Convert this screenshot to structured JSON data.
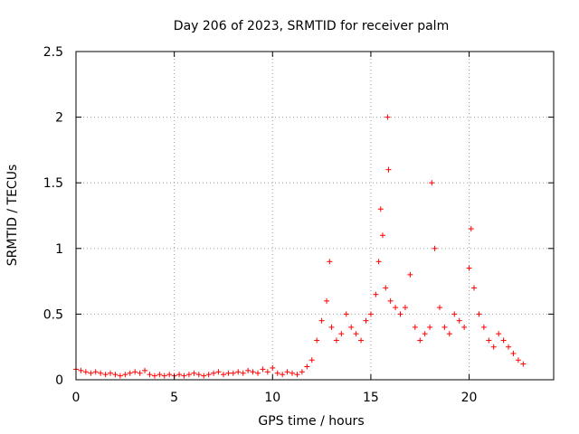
{
  "chart_data": {
    "type": "scatter",
    "title": "Day 206 of 2023, SRMTID for receiver palm",
    "xlabel": "GPS time / hours",
    "ylabel": "SRMTID / TECUs",
    "xlim": [
      0,
      24.3
    ],
    "ylim": [
      0,
      2.5
    ],
    "xticks": [
      0,
      5,
      10,
      15,
      20
    ],
    "xtick_labels": [
      "0",
      "5",
      "10",
      "15",
      "20"
    ],
    "yticks": [
      0,
      0.5,
      1,
      1.5,
      2,
      2.5
    ],
    "ytick_labels": [
      "0",
      "0.5",
      "1",
      "1.5",
      "2",
      "2.5"
    ],
    "grid": true,
    "marker": "+",
    "series": [
      {
        "name": "palm",
        "color": "#ff0000",
        "x": [
          0.0,
          0.25,
          0.5,
          0.75,
          1.0,
          1.25,
          1.5,
          1.75,
          2.0,
          2.25,
          2.5,
          2.75,
          3.0,
          3.25,
          3.5,
          3.75,
          4.0,
          4.25,
          4.5,
          4.75,
          5.0,
          5.25,
          5.5,
          5.75,
          6.0,
          6.25,
          6.5,
          6.75,
          7.0,
          7.25,
          7.5,
          7.75,
          8.0,
          8.25,
          8.5,
          8.75,
          9.0,
          9.25,
          9.5,
          9.75,
          10.0,
          10.25,
          10.5,
          10.75,
          11.0,
          11.25,
          11.5,
          11.75,
          12.0,
          12.25,
          12.5,
          12.75,
          12.9,
          13.0,
          13.25,
          13.5,
          13.75,
          14.0,
          14.25,
          14.5,
          14.75,
          15.0,
          15.25,
          15.4,
          15.5,
          15.6,
          15.75,
          15.85,
          15.9,
          16.0,
          16.25,
          16.5,
          16.75,
          17.0,
          17.25,
          17.5,
          17.75,
          18.0,
          18.1,
          18.25,
          18.5,
          18.75,
          19.0,
          19.25,
          19.5,
          19.75,
          20.0,
          20.1,
          20.25,
          20.5,
          20.75,
          21.0,
          21.25,
          21.5,
          21.75,
          22.0,
          22.25,
          22.5,
          22.75
        ],
        "y": [
          0.08,
          0.07,
          0.06,
          0.05,
          0.06,
          0.05,
          0.04,
          0.05,
          0.04,
          0.03,
          0.04,
          0.05,
          0.06,
          0.05,
          0.07,
          0.04,
          0.03,
          0.04,
          0.03,
          0.04,
          0.03,
          0.04,
          0.03,
          0.04,
          0.05,
          0.04,
          0.03,
          0.04,
          0.05,
          0.06,
          0.04,
          0.05,
          0.05,
          0.06,
          0.05,
          0.07,
          0.06,
          0.05,
          0.08,
          0.06,
          0.09,
          0.05,
          0.04,
          0.06,
          0.05,
          0.04,
          0.06,
          0.1,
          0.15,
          0.3,
          0.45,
          0.6,
          0.9,
          0.4,
          0.3,
          0.35,
          0.5,
          0.4,
          0.35,
          0.3,
          0.45,
          0.5,
          0.65,
          0.9,
          1.3,
          1.1,
          0.7,
          2.0,
          1.6,
          0.6,
          0.55,
          0.5,
          0.55,
          0.8,
          0.4,
          0.3,
          0.35,
          0.4,
          1.5,
          1.0,
          0.55,
          0.4,
          0.35,
          0.5,
          0.45,
          0.4,
          0.85,
          1.15,
          0.7,
          0.5,
          0.4,
          0.3,
          0.25,
          0.35,
          0.3,
          0.25,
          0.2,
          0.15,
          0.12
        ]
      }
    ]
  }
}
